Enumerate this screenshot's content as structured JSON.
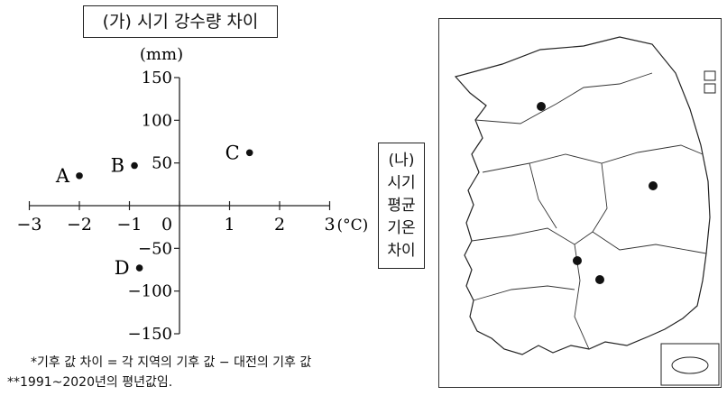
{
  "panel_a": {
    "title": "(가) 시기 강수량 차이"
  },
  "panel_b": {
    "lines": [
      "(나)",
      "시기",
      "평균",
      "기온",
      "차이"
    ]
  },
  "notes": [
    "*기후 값 차이 = 각 지역의 기후 값 − 대전의 기후 값",
    "**1991~2020년의 평년값임."
  ],
  "chart_data": {
    "type": "scatter",
    "title": "(가) 시기 강수량 차이",
    "xlabel": "(°C)",
    "ylabel": "(mm)",
    "xlim": [
      -3,
      3
    ],
    "ylim": [
      -150,
      150
    ],
    "x_ticks": [
      -3,
      -2,
      -1,
      0,
      1,
      2,
      3
    ],
    "y_ticks": [
      150,
      100,
      50,
      -50,
      -100,
      -150
    ],
    "x_tick_labels": [
      "−3",
      "−2",
      "−1",
      "0",
      "1",
      "2",
      "3"
    ],
    "y_tick_labels": [
      "150",
      "100",
      "50",
      "−50",
      "−100",
      "−150"
    ],
    "points": [
      {
        "label": "A",
        "x": -2.0,
        "y": 35
      },
      {
        "label": "B",
        "x": -0.9,
        "y": 47
      },
      {
        "label": "C",
        "x": 1.4,
        "y": 62
      },
      {
        "label": "D",
        "x": -0.8,
        "y": -73
      }
    ]
  }
}
